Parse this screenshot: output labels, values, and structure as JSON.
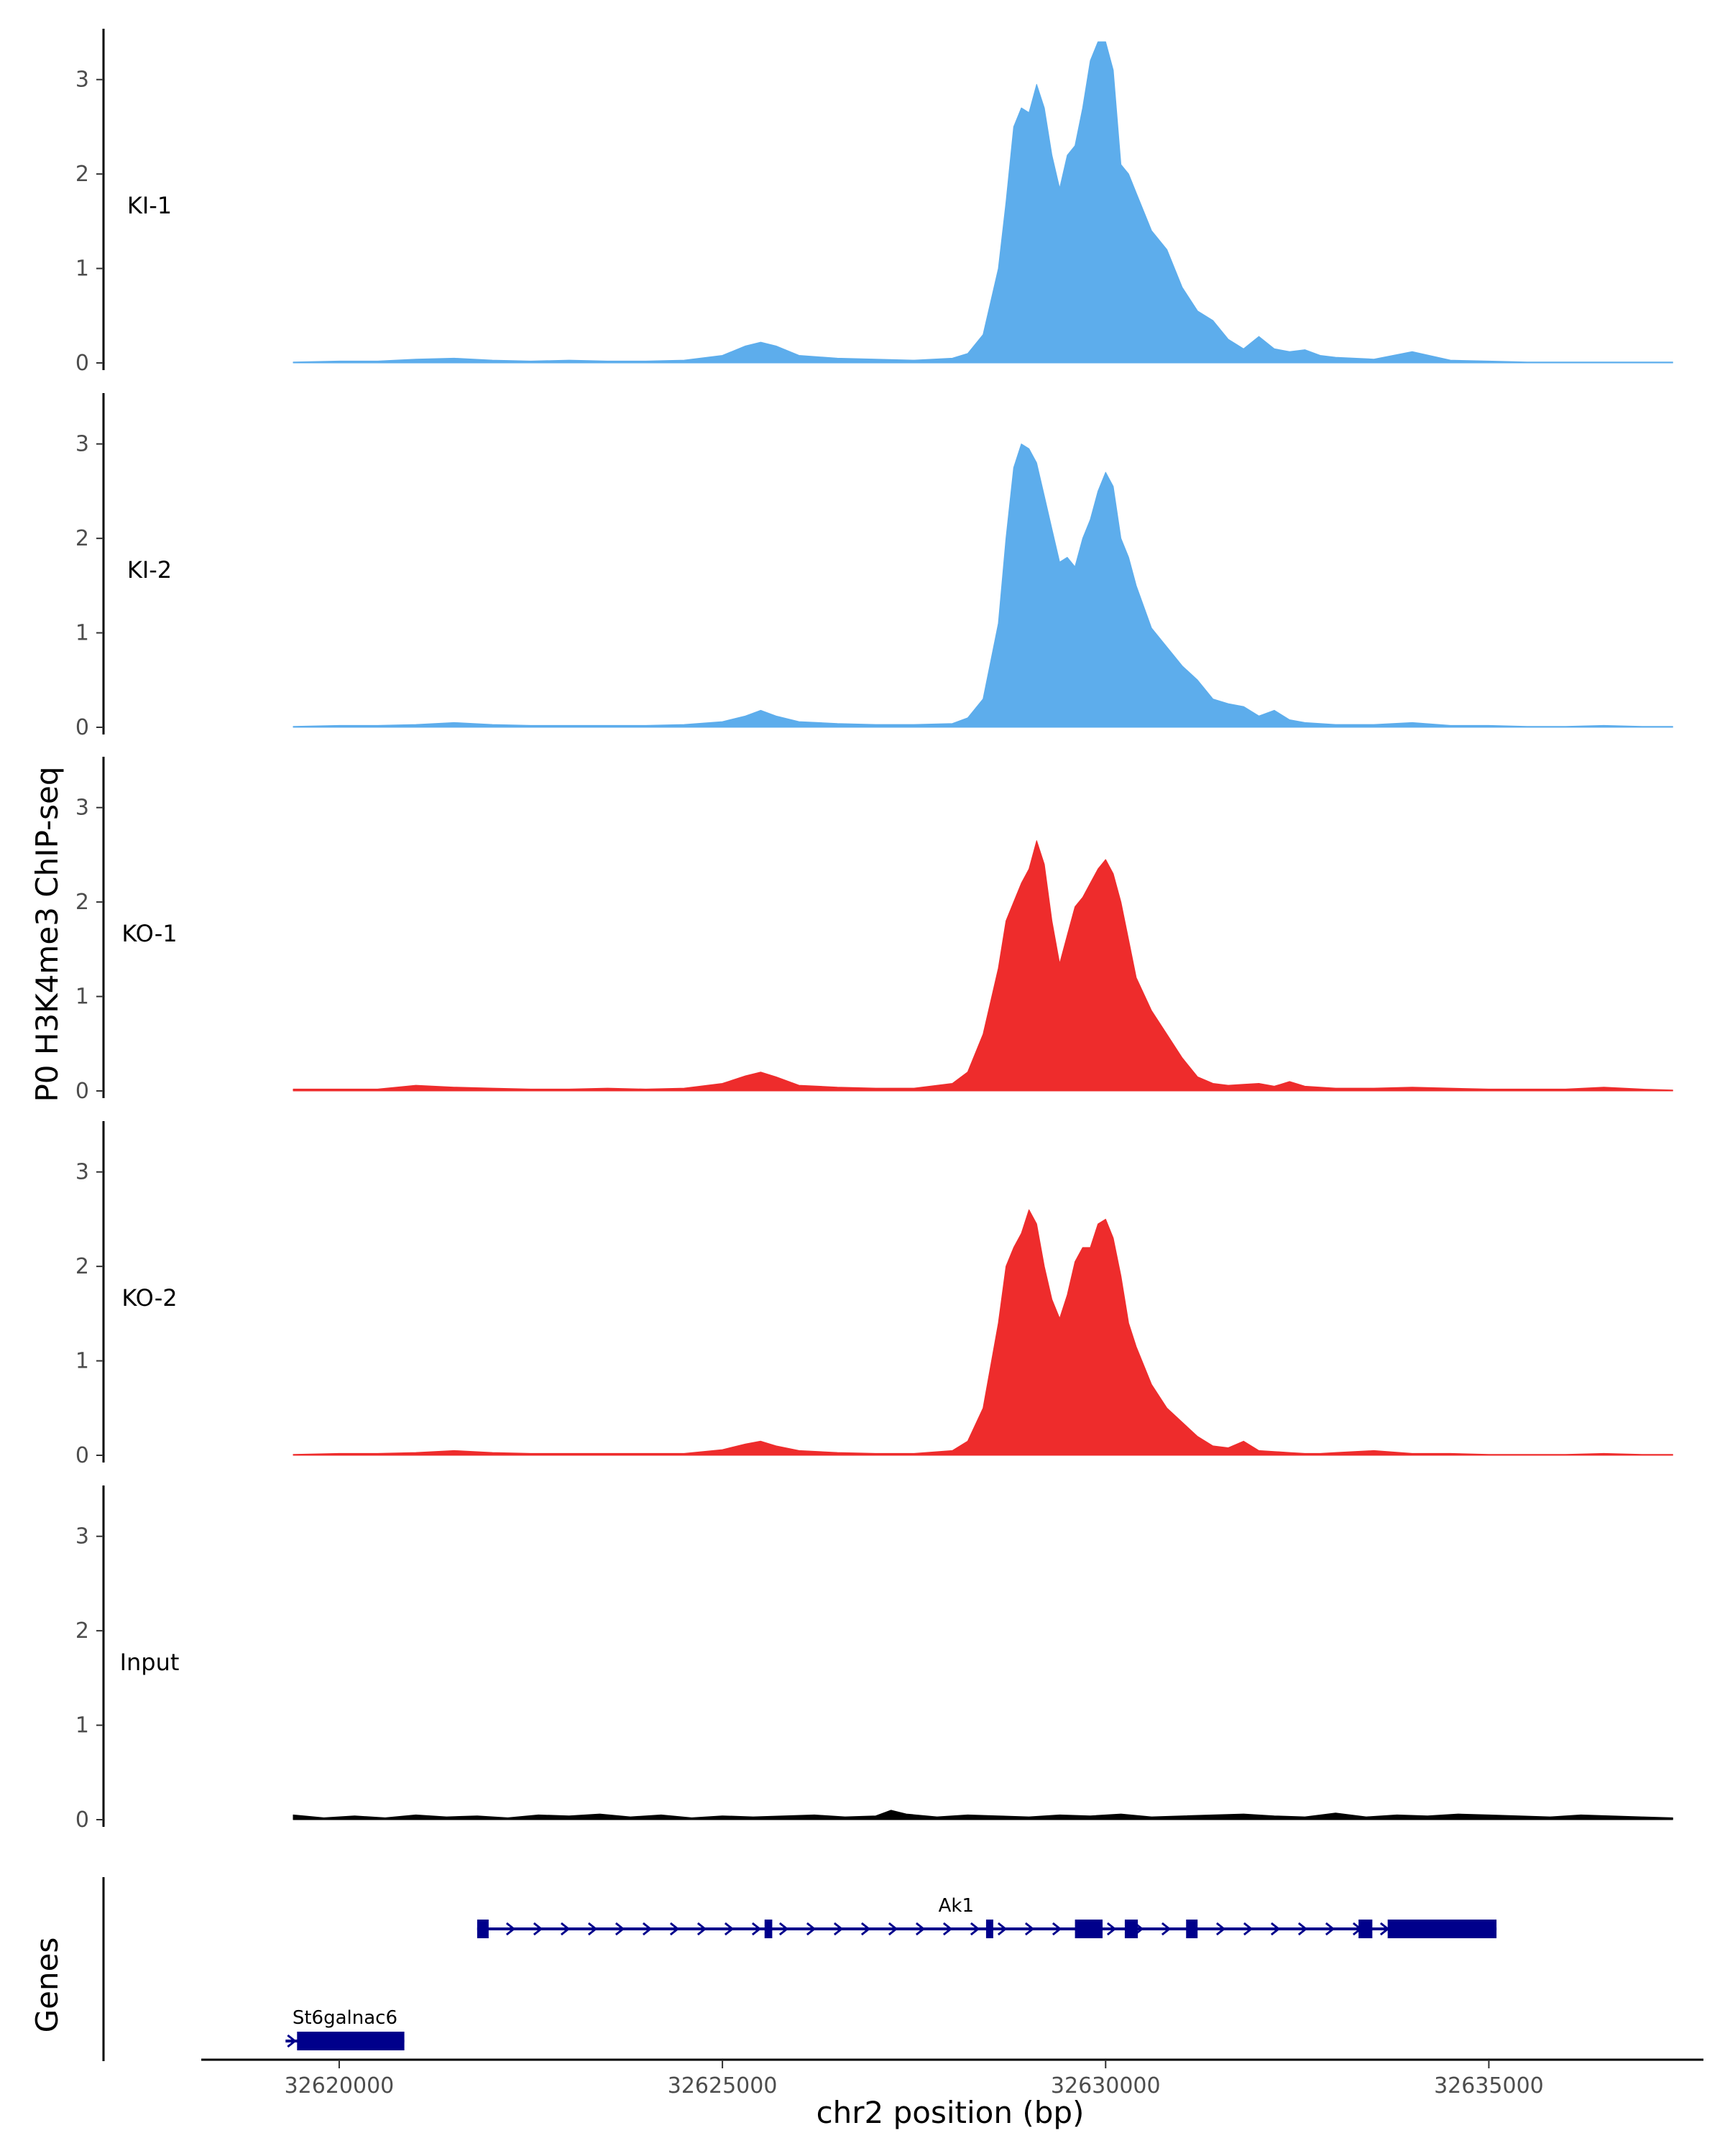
{
  "chart_data": {
    "type": "area",
    "title": "",
    "ylabel": "P0 H3K4me3 ChIP-seq",
    "xlabel": "chr2 position (bp)",
    "gene_panel_label": "Genes",
    "xlim": [
      32618200,
      32637800
    ],
    "ylim": [
      0,
      3.5
    ],
    "y_ticks": [
      0,
      1,
      2,
      3
    ],
    "x_ticks": [
      32620000,
      32625000,
      32630000,
      32635000
    ],
    "x_tick_labels": [
      "32620000",
      "32625000",
      "32630000",
      "32635000"
    ],
    "colors": {
      "KI": "#5dadec",
      "KO": "#ee2c2c",
      "Input": "#000000",
      "gene": "#00008b"
    },
    "tracks": [
      {
        "name": "KI-1",
        "color": "#5dadec",
        "x": [
          32619400,
          32620000,
          32620500,
          32621000,
          32621500,
          32622000,
          32622500,
          32623000,
          32623500,
          32624000,
          32624500,
          32625000,
          32625300,
          32625500,
          32625700,
          32626000,
          32626500,
          32627000,
          32627500,
          32628000,
          32628200,
          32628400,
          32628600,
          32628700,
          32628800,
          32628900,
          32629000,
          32629100,
          32629200,
          32629300,
          32629400,
          32629500,
          32629600,
          32629700,
          32629800,
          32629900,
          32630000,
          32630100,
          32630200,
          32630300,
          32630400,
          32630600,
          32630800,
          32631000,
          32631200,
          32631400,
          32631600,
          32631800,
          32632000,
          32632200,
          32632400,
          32632600,
          32632800,
          32633000,
          32633500,
          32634000,
          32634500,
          32635000,
          32635500,
          32636000,
          32636500,
          32637000,
          32637400
        ],
        "values": [
          0.01,
          0.02,
          0.02,
          0.04,
          0.05,
          0.03,
          0.02,
          0.03,
          0.02,
          0.02,
          0.03,
          0.08,
          0.18,
          0.22,
          0.18,
          0.08,
          0.05,
          0.04,
          0.03,
          0.05,
          0.1,
          0.3,
          1.0,
          1.7,
          2.5,
          2.7,
          2.65,
          2.95,
          2.7,
          2.2,
          1.85,
          2.2,
          2.3,
          2.7,
          3.2,
          3.4,
          3.4,
          3.1,
          2.1,
          2.0,
          1.8,
          1.4,
          1.2,
          0.8,
          0.55,
          0.45,
          0.25,
          0.15,
          0.28,
          0.15,
          0.12,
          0.14,
          0.08,
          0.06,
          0.04,
          0.12,
          0.03,
          0.02,
          0.01,
          0.01,
          0.01,
          0.01,
          0.01
        ]
      },
      {
        "name": "KI-2",
        "color": "#5dadec",
        "x": [
          32619400,
          32620000,
          32620500,
          32621000,
          32621500,
          32622000,
          32622500,
          32623000,
          32623500,
          32624000,
          32624500,
          32625000,
          32625300,
          32625500,
          32625700,
          32626000,
          32626500,
          32627000,
          32627500,
          32628000,
          32628200,
          32628400,
          32628600,
          32628700,
          32628800,
          32628900,
          32629000,
          32629100,
          32629200,
          32629300,
          32629400,
          32629500,
          32629600,
          32629700,
          32629800,
          32629900,
          32630000,
          32630100,
          32630200,
          32630300,
          32630400,
          32630600,
          32630800,
          32631000,
          32631200,
          32631400,
          32631600,
          32631800,
          32632000,
          32632200,
          32632400,
          32632600,
          32632800,
          32633000,
          32633500,
          32634000,
          32634500,
          32635000,
          32635500,
          32636000,
          32636500,
          32637000,
          32637400
        ],
        "values": [
          0.01,
          0.02,
          0.02,
          0.03,
          0.05,
          0.03,
          0.02,
          0.02,
          0.02,
          0.02,
          0.03,
          0.06,
          0.12,
          0.18,
          0.12,
          0.06,
          0.04,
          0.03,
          0.03,
          0.04,
          0.1,
          0.3,
          1.1,
          2.0,
          2.75,
          3.0,
          2.95,
          2.8,
          2.45,
          2.1,
          1.75,
          1.8,
          1.7,
          2.0,
          2.2,
          2.5,
          2.7,
          2.55,
          2.0,
          1.8,
          1.5,
          1.05,
          0.85,
          0.65,
          0.5,
          0.3,
          0.25,
          0.22,
          0.12,
          0.18,
          0.08,
          0.05,
          0.04,
          0.03,
          0.03,
          0.05,
          0.02,
          0.02,
          0.01,
          0.01,
          0.02,
          0.01,
          0.01
        ]
      },
      {
        "name": "KO-1",
        "color": "#ee2c2c",
        "x": [
          32619400,
          32620000,
          32620500,
          32621000,
          32621500,
          32622000,
          32622500,
          32623000,
          32623500,
          32624000,
          32624500,
          32625000,
          32625300,
          32625500,
          32625700,
          32626000,
          32626500,
          32627000,
          32627500,
          32628000,
          32628200,
          32628400,
          32628600,
          32628700,
          32628800,
          32628900,
          32629000,
          32629100,
          32629200,
          32629300,
          32629400,
          32629500,
          32629600,
          32629700,
          32629800,
          32629900,
          32630000,
          32630100,
          32630200,
          32630300,
          32630400,
          32630600,
          32630800,
          32631000,
          32631200,
          32631400,
          32631600,
          32631800,
          32632000,
          32632200,
          32632400,
          32632600,
          32632800,
          32633000,
          32633500,
          32634000,
          32634500,
          32635000,
          32635500,
          32636000,
          32636500,
          32637000,
          32637400
        ],
        "values": [
          0.02,
          0.02,
          0.02,
          0.06,
          0.04,
          0.03,
          0.02,
          0.02,
          0.03,
          0.02,
          0.03,
          0.08,
          0.16,
          0.2,
          0.15,
          0.06,
          0.04,
          0.03,
          0.03,
          0.08,
          0.2,
          0.6,
          1.3,
          1.8,
          2.0,
          2.2,
          2.35,
          2.65,
          2.4,
          1.8,
          1.35,
          1.65,
          1.95,
          2.05,
          2.2,
          2.35,
          2.45,
          2.3,
          2.0,
          1.6,
          1.2,
          0.85,
          0.6,
          0.35,
          0.15,
          0.08,
          0.06,
          0.07,
          0.08,
          0.05,
          0.1,
          0.05,
          0.04,
          0.03,
          0.03,
          0.04,
          0.03,
          0.02,
          0.02,
          0.02,
          0.04,
          0.02,
          0.01
        ]
      },
      {
        "name": "KO-2",
        "color": "#ee2c2c",
        "x": [
          32619400,
          32620000,
          32620500,
          32621000,
          32621500,
          32622000,
          32622500,
          32623000,
          32623500,
          32624000,
          32624500,
          32625000,
          32625300,
          32625500,
          32625700,
          32626000,
          32626500,
          32627000,
          32627500,
          32628000,
          32628200,
          32628400,
          32628600,
          32628700,
          32628800,
          32628900,
          32629000,
          32629100,
          32629200,
          32629300,
          32629400,
          32629500,
          32629600,
          32629700,
          32629800,
          32629900,
          32630000,
          32630100,
          32630200,
          32630300,
          32630400,
          32630600,
          32630800,
          32631000,
          32631200,
          32631400,
          32631600,
          32631800,
          32632000,
          32632200,
          32632400,
          32632600,
          32632800,
          32633000,
          32633500,
          32634000,
          32634500,
          32635000,
          32635500,
          32636000,
          32636500,
          32637000,
          32637400
        ],
        "values": [
          0.01,
          0.02,
          0.02,
          0.03,
          0.05,
          0.03,
          0.02,
          0.02,
          0.02,
          0.02,
          0.02,
          0.06,
          0.12,
          0.15,
          0.1,
          0.05,
          0.03,
          0.02,
          0.02,
          0.05,
          0.15,
          0.5,
          1.4,
          2.0,
          2.2,
          2.35,
          2.6,
          2.45,
          2.0,
          1.65,
          1.45,
          1.7,
          2.05,
          2.2,
          2.2,
          2.45,
          2.5,
          2.3,
          1.9,
          1.4,
          1.15,
          0.75,
          0.5,
          0.35,
          0.2,
          0.1,
          0.08,
          0.15,
          0.05,
          0.04,
          0.03,
          0.02,
          0.02,
          0.03,
          0.05,
          0.02,
          0.02,
          0.01,
          0.01,
          0.01,
          0.02,
          0.01,
          0.01
        ]
      },
      {
        "name": "Input",
        "color": "#000000",
        "x": [
          32619400,
          32619800,
          32620200,
          32620600,
          32621000,
          32621400,
          32621800,
          32622200,
          32622600,
          32623000,
          32623400,
          32623800,
          32624200,
          32624600,
          32625000,
          32625400,
          32625800,
          32626200,
          32626600,
          32627000,
          32627200,
          32627400,
          32627800,
          32628200,
          32628600,
          32629000,
          32629400,
          32629800,
          32630200,
          32630600,
          32631000,
          32631400,
          32631800,
          32632200,
          32632600,
          32633000,
          32633400,
          32633800,
          32634200,
          32634600,
          32635000,
          32635400,
          32635800,
          32636200,
          32636600,
          32637000,
          32637400
        ],
        "values": [
          0.05,
          0.02,
          0.04,
          0.02,
          0.05,
          0.03,
          0.04,
          0.02,
          0.05,
          0.04,
          0.06,
          0.03,
          0.05,
          0.02,
          0.04,
          0.03,
          0.04,
          0.05,
          0.03,
          0.04,
          0.1,
          0.06,
          0.03,
          0.05,
          0.04,
          0.03,
          0.05,
          0.04,
          0.06,
          0.03,
          0.04,
          0.05,
          0.06,
          0.04,
          0.03,
          0.07,
          0.03,
          0.05,
          0.04,
          0.06,
          0.05,
          0.04,
          0.03,
          0.05,
          0.04,
          0.03,
          0.02
        ]
      }
    ],
    "genes": [
      {
        "name": "Ak1",
        "strand": "+",
        "start": 32621800,
        "end": 32635100,
        "exons": [
          [
            32621800,
            32621950
          ],
          [
            32625550,
            32625650
          ],
          [
            32628440,
            32628520
          ],
          [
            32629600,
            32629960
          ],
          [
            32630250,
            32630420
          ],
          [
            32631050,
            32631200
          ],
          [
            32633300,
            32633480
          ],
          [
            32633680,
            32635100
          ]
        ]
      },
      {
        "name": "St6galnac6",
        "strand": "+",
        "start": 32619300,
        "end": 32620850,
        "exons": [
          [
            32619450,
            32620850
          ]
        ]
      }
    ]
  }
}
